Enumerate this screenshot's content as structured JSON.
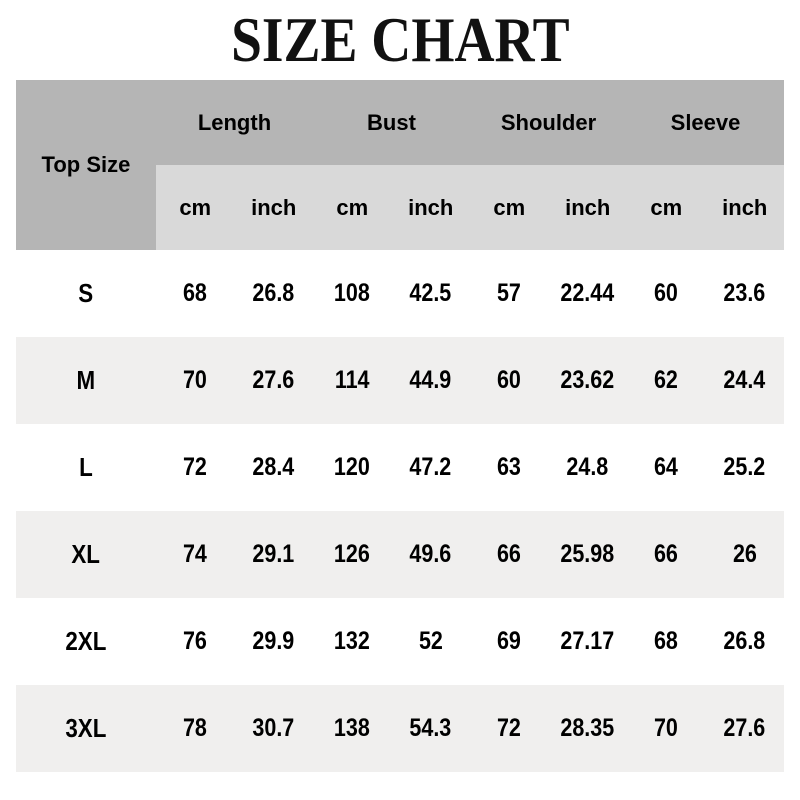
{
  "page_title": "SIZE CHART",
  "colors": {
    "header_bg": "#b5b5b5",
    "unit_header_bg": "#d9d9d9",
    "row_alt_bg": "#f0efee",
    "row_bg": "#ffffff",
    "title_color": "#111111"
  },
  "chart_data": {
    "type": "table",
    "title": "SIZE CHART",
    "corner_header": "Top Size",
    "column_groups": [
      "Length",
      "Bust",
      "Shoulder",
      "Sleeve"
    ],
    "unit_row": [
      "cm",
      "inch",
      "cm",
      "inch",
      "cm",
      "inch",
      "cm",
      "inch"
    ],
    "rows": [
      {
        "size": "S",
        "values": [
          68,
          26.8,
          108,
          42.5,
          57,
          22.44,
          60,
          23.6
        ]
      },
      {
        "size": "M",
        "values": [
          70,
          27.6,
          114,
          44.9,
          60,
          23.62,
          62,
          24.4
        ]
      },
      {
        "size": "L",
        "values": [
          72,
          28.4,
          120,
          47.2,
          63,
          24.8,
          64,
          25.2
        ]
      },
      {
        "size": "XL",
        "values": [
          74,
          29.1,
          126,
          49.6,
          66,
          25.98,
          66,
          26
        ]
      },
      {
        "size": "2XL",
        "values": [
          76,
          29.9,
          132,
          52,
          69,
          27.17,
          68,
          26.8
        ]
      },
      {
        "size": "3XL",
        "values": [
          78,
          30.7,
          138,
          54.3,
          72,
          28.35,
          70,
          27.6
        ]
      }
    ]
  }
}
